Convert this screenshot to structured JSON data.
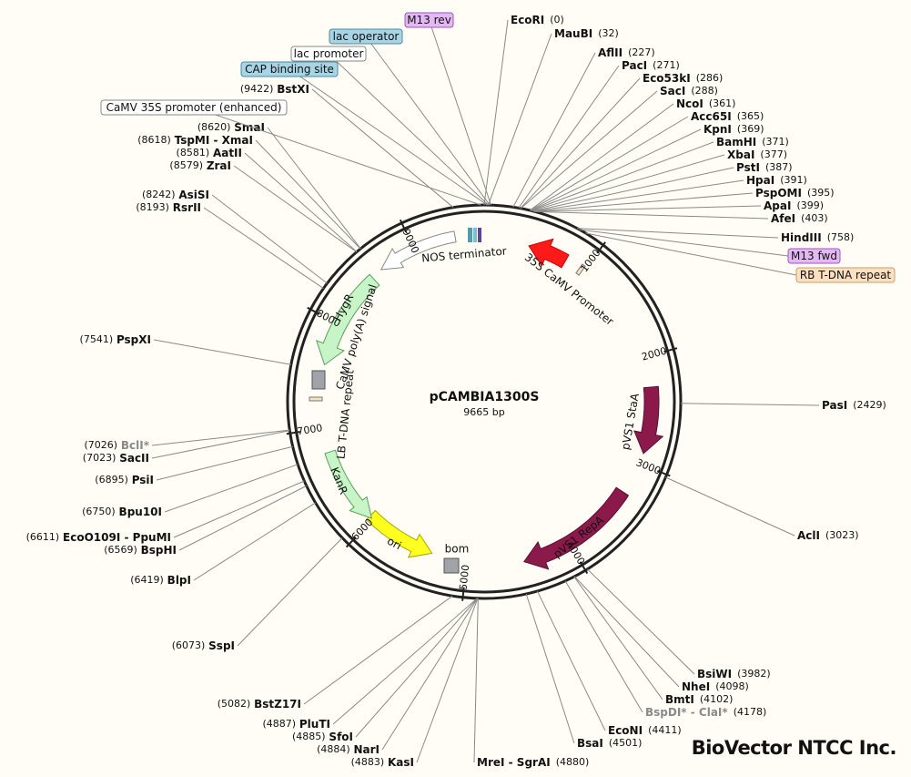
{
  "title": "pCAMBIA1300S",
  "length": "9665 bp",
  "sites": [
    {
      "name": "EcoRI",
      "position": {
        "value": 0,
        "label": "(0)"
      }
    },
    {
      "name": "MauBI",
      "position": {
        "value": 32,
        "label": "(32)"
      }
    },
    {
      "name": "AflII",
      "position": {
        "value": 227,
        "label": "(227)"
      }
    },
    {
      "name": "PacI",
      "position": {
        "value": 271,
        "label": "(271)"
      }
    },
    {
      "name": "Eco53kI",
      "position": {
        "value": 286,
        "label": "(286)"
      }
    },
    {
      "name": "SacI",
      "position": {
        "value": 288,
        "label": "(288)"
      }
    },
    {
      "name": "NcoI",
      "position": {
        "value": 361,
        "label": "(361)"
      }
    },
    {
      "name": "Acc65I",
      "position": {
        "value": 365,
        "label": "(365)"
      }
    },
    {
      "name": "KpnI",
      "position": {
        "value": 369,
        "label": "(369)"
      }
    },
    {
      "name": "BamHI",
      "position": {
        "value": 371,
        "label": "(371)"
      }
    },
    {
      "name": "XbaI",
      "position": {
        "value": 377,
        "label": "(377)"
      }
    },
    {
      "name": "PstI",
      "position": {
        "value": 387,
        "label": "(387)"
      }
    },
    {
      "name": "HpaI",
      "position": {
        "value": 391,
        "label": "(391)"
      }
    },
    {
      "name": "PspOMI",
      "position": {
        "value": 395,
        "label": "(395)"
      }
    },
    {
      "name": "ApaI",
      "position": {
        "value": 399,
        "label": "(399)"
      }
    },
    {
      "name": "AfeI",
      "position": {
        "value": 403,
        "label": "(403)"
      }
    },
    {
      "name": "HindIII",
      "position": {
        "value": 758,
        "label": "(758)"
      }
    },
    {
      "name": "PasI",
      "position": {
        "value": 2429,
        "label": "(2429)"
      }
    },
    {
      "name": "AclI",
      "position": {
        "value": 3023,
        "label": "(3023)"
      }
    },
    {
      "name": "BsiWI",
      "position": {
        "value": 3982,
        "label": "(3982)"
      }
    },
    {
      "name": "NheI",
      "position": {
        "value": 4098,
        "label": "(4098)"
      }
    },
    {
      "name": "BmtI",
      "position": {
        "value": 4102,
        "label": "(4102)"
      }
    },
    {
      "name": "BspDI* - ClaI*",
      "position": {
        "value": 4178,
        "label": "(4178)"
      },
      "color": "#8a8a8a"
    },
    {
      "name": "EcoNI",
      "position": {
        "value": 4411,
        "label": "(4411)"
      }
    },
    {
      "name": "BsaI",
      "position": {
        "value": 4501,
        "label": "(4501)"
      }
    },
    {
      "name": "MreI - SgrAI",
      "position": {
        "value": 4880,
        "label": "(4880)"
      }
    },
    {
      "name": "KasI",
      "position": {
        "value": 4883,
        "label": "(4883)"
      }
    },
    {
      "name": "NarI",
      "position": {
        "value": 4884,
        "label": "(4884)"
      }
    },
    {
      "name": "SfoI",
      "position": {
        "value": 4885,
        "label": "(4885)"
      }
    },
    {
      "name": "PluTI",
      "position": {
        "value": 4887,
        "label": "(4887)"
      }
    },
    {
      "name": "BstZ17I",
      "position": {
        "value": 5082,
        "label": "(5082)"
      }
    },
    {
      "name": "SspI",
      "position": {
        "value": 6073,
        "label": "(6073)"
      }
    },
    {
      "name": "BlpI",
      "position": {
        "value": 6419,
        "label": "(6419)"
      }
    },
    {
      "name": "BspHI",
      "position": {
        "value": 6569,
        "label": "(6569)"
      }
    },
    {
      "name": "EcoO109I - PpuMI",
      "position": {
        "value": 6611,
        "label": "(6611)"
      }
    },
    {
      "name": "Bpu10I",
      "position": {
        "value": 6750,
        "label": "(6750)"
      }
    },
    {
      "name": "PsiI",
      "position": {
        "value": 6895,
        "label": "(6895)"
      }
    },
    {
      "name": "SacII",
      "position": {
        "value": 7023,
        "label": "(7023)"
      }
    },
    {
      "name": "BclI*",
      "position": {
        "value": 7026,
        "label": "(7026)"
      },
      "color": "#8a8a8a"
    },
    {
      "name": "PspXI",
      "position": {
        "value": 7541,
        "label": "(7541)"
      }
    },
    {
      "name": "RsrII",
      "position": {
        "value": 8193,
        "label": "(8193)"
      }
    },
    {
      "name": "AsiSI",
      "position": {
        "value": 8242,
        "label": "(8242)"
      }
    },
    {
      "name": "ZraI",
      "position": {
        "value": 8579,
        "label": "(8579)"
      }
    },
    {
      "name": "AatII",
      "position": {
        "value": 8581,
        "label": "(8581)"
      }
    },
    {
      "name": "TspMI - XmaI",
      "position": {
        "value": 8618,
        "label": "(8618)"
      }
    },
    {
      "name": "SmaI",
      "position": {
        "value": 8620,
        "label": "(8620)"
      }
    },
    {
      "name": "BstXI",
      "position": {
        "value": 9422,
        "label": "(9422)"
      }
    }
  ],
  "features": [
    "M13 rev",
    "lac operator",
    "lac promoter",
    "CAP binding site",
    "CaMV 35S promoter (enhanced)",
    "M13 fwd",
    "RB T-DNA repeat"
  ],
  "arrow_labels": [
    "NOS terminator",
    "35S CaMV Promoter",
    "HygR",
    "CaMV poly(A) signal",
    "LB T-DNA repeat",
    "pVS1 StaA",
    "pVS1 RepA",
    "ori",
    "KanR",
    "bom"
  ],
  "ticks": [
    1000,
    2000,
    3000,
    4000,
    5000,
    6000,
    7000,
    8000,
    9000
  ],
  "logo": "BioVector NTCC Inc."
}
